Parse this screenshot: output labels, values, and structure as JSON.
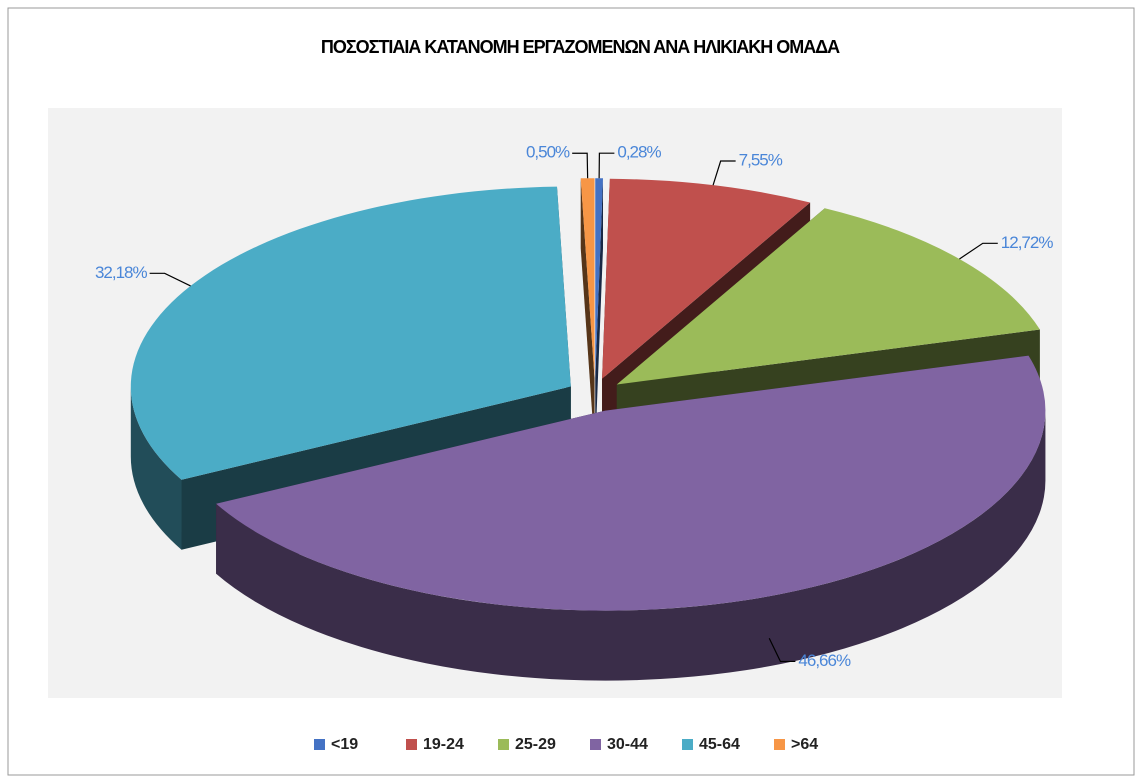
{
  "chart_data": {
    "type": "pie",
    "title": "ΠΟΣΟΣΤΙΑΙΑ ΚΑΤΑΝΟΜΗ ΕΡΓΑΖΟΜΕΝΩΝ ΑΝΑ ΗΛΙΚΙΑΚΗ ΟΜΑΔΑ",
    "categories": [
      "<19",
      "19-24",
      "25-29",
      "30-44",
      "45-64",
      ">64"
    ],
    "values": [
      0.28,
      7.55,
      12.72,
      46.66,
      32.18,
      0.5
    ],
    "value_labels": [
      "0,28%",
      "7,55%",
      "12,72%",
      "46,66%",
      "32,18%",
      "0,50%"
    ],
    "colors": [
      "#4472c4",
      "#c0504d",
      "#9bbb59",
      "#8064a2",
      "#4bacc6",
      "#f79646"
    ],
    "legend": "bottom"
  }
}
